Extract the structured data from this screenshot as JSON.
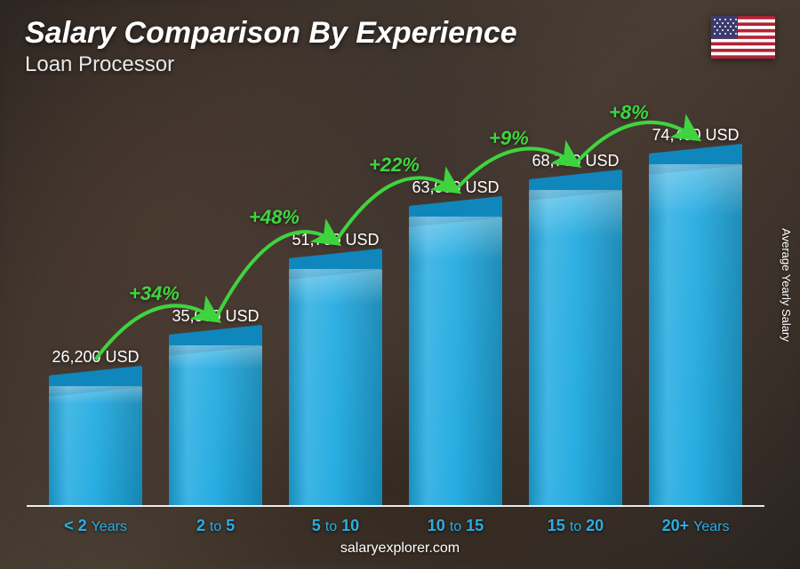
{
  "header": {
    "title": "Salary Comparison By Experience",
    "subtitle": "Loan Processor",
    "flag_country": "United States"
  },
  "yaxis_label": "Average Yearly Salary",
  "footer": "salaryexplorer.com",
  "chart": {
    "type": "bar",
    "bar_color": "#1ba8e0",
    "bar_top_color": "#0d8bc4",
    "growth_color": "#3fd43f",
    "value_color": "#ffffff",
    "category_color": "#29aee4",
    "baseline_color": "#ffffff",
    "background_tone": "#3a312a",
    "title_fontsize": 34,
    "subtitle_fontsize": 24,
    "value_fontsize": 18,
    "category_fontsize": 18,
    "growth_fontsize": 22,
    "max_value": 74400,
    "bar_width_pct": 78,
    "bars": [
      {
        "category_html": "< 2 <span class='thin'>Years</span>",
        "category": "< 2 Years",
        "value": 26200,
        "value_label": "26,200 USD"
      },
      {
        "category_html": "2 <span class='thin'>to</span> 5",
        "category": "2 to 5",
        "value": 35000,
        "value_label": "35,000 USD",
        "growth": "+34%"
      },
      {
        "category_html": "5 <span class='thin'>to</span> 10",
        "category": "5 to 10",
        "value": 51700,
        "value_label": "51,700 USD",
        "growth": "+48%"
      },
      {
        "category_html": "10 <span class='thin'>to</span> 15",
        "category": "10 to 15",
        "value": 63000,
        "value_label": "63,000 USD",
        "growth": "+22%"
      },
      {
        "category_html": "15 <span class='thin'>to</span> 20",
        "category": "15 to 20",
        "value": 68700,
        "value_label": "68,700 USD",
        "growth": "+9%"
      },
      {
        "category_html": "20+ <span class='thin'>Years</span>",
        "category": "20+ Years",
        "value": 74400,
        "value_label": "74,400 USD",
        "growth": "+8%"
      }
    ]
  }
}
